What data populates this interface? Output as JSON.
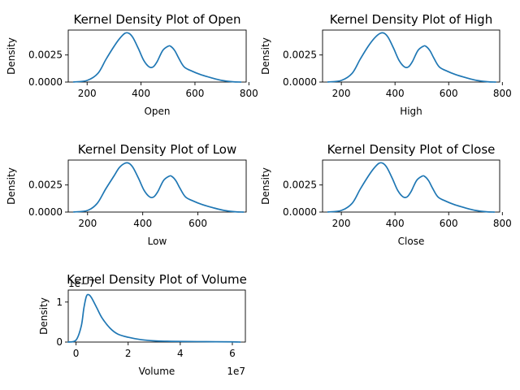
{
  "figure": {
    "background": "#ffffff",
    "line_color": "#1f77b4"
  },
  "chart_data": [
    {
      "type": "line",
      "title": "Kernel Density Plot of Open",
      "xlabel": "Open",
      "ylabel": "Density",
      "xlim": [
        130,
        790
      ],
      "ylim": [
        0,
        0.0048
      ],
      "xticks": [
        200,
        400,
        600,
        800
      ],
      "xtick_labels": [
        "200",
        "400",
        "600",
        "800"
      ],
      "yticks": [
        0,
        0.0025
      ],
      "ytick_labels": [
        "0.0000",
        "0.0025"
      ],
      "x": [
        150,
        200,
        240,
        270,
        300,
        320,
        340,
        355,
        370,
        390,
        410,
        430,
        445,
        460,
        480,
        500,
        510,
        525,
        540,
        560,
        590,
        620,
        660,
        700,
        740,
        770
      ],
      "y": [
        1e-05,
        0.00015,
        0.0008,
        0.0021,
        0.0033,
        0.004,
        0.0045,
        0.0045,
        0.0041,
        0.0031,
        0.002,
        0.0014,
        0.0014,
        0.0019,
        0.0029,
        0.0033,
        0.0033,
        0.0029,
        0.0022,
        0.0014,
        0.001,
        0.0007,
        0.0004,
        0.00015,
        3e-05,
        0.0
      ]
    },
    {
      "type": "line",
      "title": "Kernel Density Plot of High",
      "xlabel": "High",
      "ylabel": "Density",
      "xlim": [
        130,
        790
      ],
      "ylim": [
        0,
        0.0048
      ],
      "xticks": [
        200,
        400,
        600,
        800
      ],
      "xtick_labels": [
        "200",
        "400",
        "600",
        "800"
      ],
      "yticks": [
        0,
        0.0025
      ],
      "ytick_labels": [
        "0.0000",
        "0.0025"
      ],
      "x": [
        150,
        200,
        240,
        270,
        300,
        325,
        345,
        360,
        375,
        395,
        415,
        435,
        450,
        465,
        485,
        505,
        515,
        530,
        545,
        565,
        595,
        625,
        665,
        705,
        745,
        775
      ],
      "y": [
        1e-05,
        0.00015,
        0.0008,
        0.0021,
        0.0033,
        0.0041,
        0.0045,
        0.0045,
        0.0041,
        0.0031,
        0.002,
        0.0014,
        0.0014,
        0.0019,
        0.0029,
        0.0033,
        0.0033,
        0.0029,
        0.0022,
        0.0014,
        0.001,
        0.0007,
        0.0004,
        0.00015,
        3e-05,
        0.0
      ]
    },
    {
      "type": "line",
      "title": "Kernel Density Plot of Low",
      "xlabel": "Low",
      "ylabel": "Density",
      "xlim": [
        130,
        775
      ],
      "ylim": [
        0,
        0.0048
      ],
      "xticks": [
        200,
        400,
        600
      ],
      "xtick_labels": [
        "200",
        "400",
        "600"
      ],
      "yticks": [
        0,
        0.0025
      ],
      "ytick_labels": [
        "0.0000",
        "0.0025"
      ],
      "x": [
        150,
        200,
        235,
        265,
        295,
        315,
        335,
        350,
        365,
        385,
        405,
        425,
        440,
        455,
        475,
        495,
        505,
        520,
        535,
        555,
        585,
        615,
        655,
        695,
        735,
        765
      ],
      "y": [
        1e-05,
        0.00015,
        0.0008,
        0.0021,
        0.0033,
        0.0041,
        0.0045,
        0.0045,
        0.0041,
        0.0031,
        0.002,
        0.0014,
        0.0014,
        0.0019,
        0.0029,
        0.0033,
        0.0033,
        0.0029,
        0.0022,
        0.0014,
        0.001,
        0.0007,
        0.0004,
        0.00015,
        3e-05,
        0.0
      ]
    },
    {
      "type": "line",
      "title": "Kernel Density Plot of Close",
      "xlabel": "Close",
      "ylabel": "Density",
      "xlim": [
        130,
        790
      ],
      "ylim": [
        0,
        0.0048
      ],
      "xticks": [
        200,
        400,
        600,
        800
      ],
      "xtick_labels": [
        "200",
        "400",
        "600",
        "800"
      ],
      "yticks": [
        0,
        0.0025
      ],
      "ytick_labels": [
        "0.0000",
        "0.0025"
      ],
      "x": [
        150,
        200,
        240,
        270,
        300,
        320,
        340,
        355,
        370,
        390,
        410,
        430,
        445,
        460,
        480,
        500,
        510,
        525,
        540,
        560,
        590,
        620,
        660,
        700,
        740,
        770
      ],
      "y": [
        1e-05,
        0.00015,
        0.0008,
        0.0021,
        0.0033,
        0.004,
        0.0045,
        0.0045,
        0.0041,
        0.0031,
        0.002,
        0.0014,
        0.0014,
        0.0019,
        0.0029,
        0.0033,
        0.0033,
        0.0029,
        0.0022,
        0.0014,
        0.001,
        0.0007,
        0.0004,
        0.00015,
        3e-05,
        0.0
      ]
    },
    {
      "type": "line",
      "title": "Kernel Density Plot of Volume",
      "xlabel": "Volume",
      "ylabel": "Density",
      "y_offset_label": "1e−7",
      "x_offset_label": "1e7",
      "xlim": [
        -0.3,
        6.5
      ],
      "ylim": [
        0,
        1.3
      ],
      "xticks": [
        0,
        2,
        4,
        6
      ],
      "xtick_labels": [
        "0",
        "2",
        "4",
        "6"
      ],
      "yticks": [
        0,
        1
      ],
      "ytick_labels": [
        "0",
        "1"
      ],
      "x": [
        -0.3,
        0.0,
        0.2,
        0.3,
        0.4,
        0.5,
        0.6,
        0.8,
        1.0,
        1.3,
        1.6,
        2.0,
        2.5,
        3.0,
        3.5,
        4.0,
        5.0,
        6.0,
        6.3
      ],
      "y": [
        0.0,
        0.05,
        0.4,
        0.85,
        1.15,
        1.18,
        1.1,
        0.85,
        0.6,
        0.35,
        0.2,
        0.12,
        0.06,
        0.03,
        0.02,
        0.015,
        0.01,
        0.005,
        0.0
      ]
    }
  ]
}
